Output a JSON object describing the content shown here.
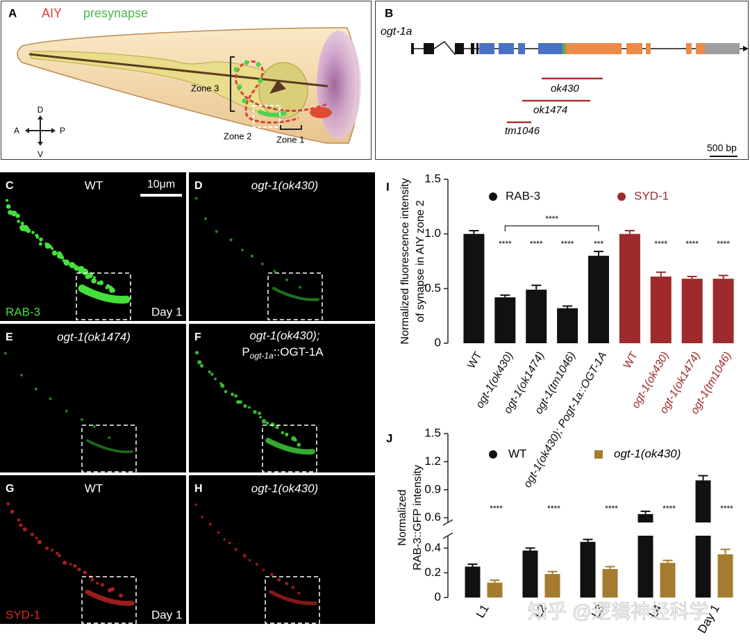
{
  "panels": {
    "A": {
      "label": "A",
      "title_aiy": "AIY",
      "title_presynapse": "presynapse",
      "zones": [
        "Zone 3",
        "Zone 2",
        "Zone 1"
      ],
      "compass": {
        "up": "D",
        "left": "A",
        "right": "P",
        "down": "V"
      }
    },
    "B": {
      "label": "B",
      "gene": "ogt-1a",
      "alleles": [
        "ok430",
        "ok1474",
        "tm1046"
      ],
      "scale_bar": "500 bp"
    },
    "micrographs": [
      {
        "label": "C",
        "title": "WT",
        "scale_bar": "10μm",
        "marker": "RAB-3",
        "stage": "Day 1"
      },
      {
        "label": "D",
        "title": "ogt-1(ok430)"
      },
      {
        "label": "E",
        "title": "ogt-1(ok1474)"
      },
      {
        "label": "F",
        "title": "ogt-1(ok430);",
        "title_line2": [
          "P",
          "ogt-1a",
          "::OGT-1A"
        ]
      },
      {
        "label": "G",
        "title": "WT",
        "marker": "SYD-1",
        "stage": "Day 1"
      },
      {
        "label": "H",
        "title": "ogt-1(ok430)"
      }
    ]
  },
  "chart_data": [
    {
      "type": "bar",
      "label": "I",
      "y_label": [
        "Normalized fluorescence intensity",
        "of synapse in AIY zone 2"
      ],
      "categories": [
        "WT",
        "ogt-1(ok430)",
        "ogt-1(ok1474)",
        "ogt-1(tm1046)",
        "ogt-1(ok430); Pogt-1a::OGT-1A",
        "WT",
        "ogt-1(ok430)",
        "ogt-1(ok1474)",
        "ogt-1(tm1046)"
      ],
      "values": [
        1.0,
        0.42,
        0.49,
        0.32,
        0.8,
        1.0,
        0.61,
        0.59,
        0.59
      ],
      "errors": [
        0.03,
        0.02,
        0.04,
        0.02,
        0.04,
        0.03,
        0.04,
        0.02,
        0.03
      ],
      "colors": [
        "#111111",
        "#111111",
        "#111111",
        "#111111",
        "#111111",
        "#9e2a2b",
        "#9e2a2b",
        "#9e2a2b",
        "#9e2a2b"
      ],
      "legend": [
        {
          "name": "RAB-3",
          "color": "#111111"
        },
        {
          "name": "SYD-1",
          "color": "#9e2a2b"
        }
      ],
      "significance": [
        null,
        "****",
        "****",
        "****",
        "***",
        null,
        "****",
        "****",
        "****"
      ],
      "comparison": {
        "label": "****",
        "between": [
          1,
          4
        ]
      },
      "ylim": [
        0,
        1.5
      ],
      "yticks": [
        0,
        0.5,
        {
          "value": 1,
          "label": "1.0"
        },
        1.5
      ]
    },
    {
      "type": "grouped_bar",
      "label": "J",
      "y_label": [
        "Normalized",
        "RAB-3::GFP intensity"
      ],
      "categories": [
        "L1",
        "L2",
        "L3",
        "L4",
        "Day 1"
      ],
      "series": [
        {
          "name": "WT",
          "color": "#111111",
          "marker": "circle",
          "values": [
            0.25,
            0.38,
            0.45,
            0.64,
            1.0
          ],
          "errors": [
            0.02,
            0.02,
            0.02,
            0.03,
            0.05
          ]
        },
        {
          "name": "ogt-1(ok430)",
          "color": "#a57b2f",
          "marker": "square",
          "values": [
            0.12,
            0.19,
            0.23,
            0.28,
            0.35
          ],
          "errors": [
            0.02,
            0.02,
            0.02,
            0.02,
            0.04
          ]
        }
      ],
      "significance": [
        "****",
        "****",
        "****",
        "****",
        "****"
      ],
      "ylim": [
        0,
        1.5
      ],
      "axis_break": [
        0.5,
        0.55
      ],
      "yticks": [
        0,
        0.2,
        0.4,
        0.6,
        0.9,
        1.2,
        1.5
      ]
    }
  ],
  "watermark": "知乎 @逻辑神经科学"
}
